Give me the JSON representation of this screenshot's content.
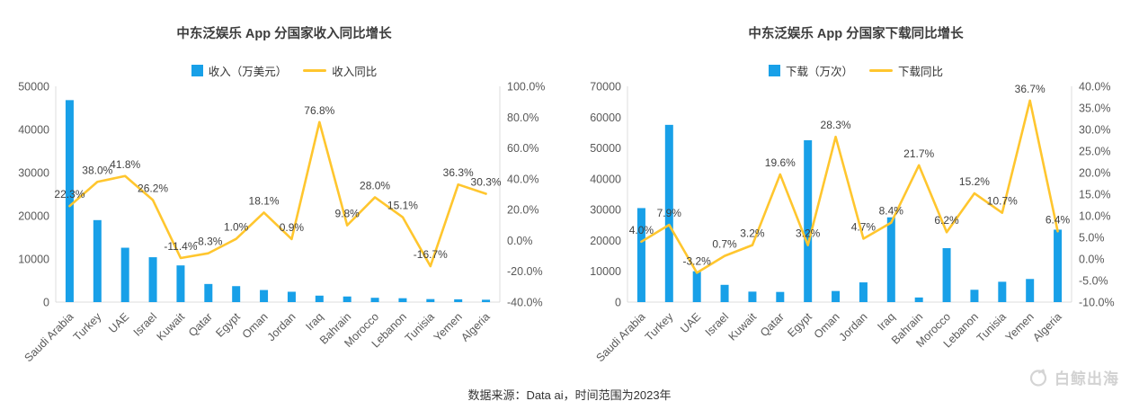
{
  "footer": {
    "source": "数据来源：Data ai，时间范围为2023年"
  },
  "watermark": {
    "text": "白鲸出海"
  },
  "chart_data": [
    {
      "type": "bar",
      "subtype": "bar+line-combo",
      "title": "中东泛娱乐 App 分国家收入同比增长",
      "categories": [
        "Saudi Arabia",
        "Turkey",
        "UAE",
        "Israel",
        "Kuwait",
        "Qatar",
        "Egypt",
        "Oman",
        "Jordan",
        "Iraq",
        "Bahrain",
        "Morocco",
        "Lebanon",
        "Tunisia",
        "Yemen",
        "Algeria"
      ],
      "series": [
        {
          "name": "收入（万美元）",
          "type": "bar",
          "axis": "left",
          "values": [
            46800,
            19000,
            12600,
            10400,
            8500,
            4200,
            3700,
            2800,
            2400,
            1500,
            1300,
            1000,
            900,
            700,
            650,
            550
          ]
        },
        {
          "name": "收入同比",
          "type": "line",
          "axis": "right",
          "unit": "%",
          "values": [
            22.3,
            38.0,
            41.8,
            26.2,
            -11.4,
            -8.3,
            1.0,
            18.1,
            0.9,
            76.8,
            9.8,
            28.0,
            15.1,
            -16.7,
            36.3,
            30.3
          ]
        }
      ],
      "left_axis": {
        "min": 0,
        "max": 50000,
        "step": 10000
      },
      "right_axis": {
        "min": -40,
        "max": 100,
        "step": 20,
        "suffix": "%"
      },
      "grid": false,
      "legend_position": "top",
      "colors": {
        "bar": "#18a0e8",
        "line": "#ffc62e"
      }
    },
    {
      "type": "bar",
      "subtype": "bar+line-combo",
      "title": "中东泛娱乐 App 分国家下载同比增长",
      "categories": [
        "Saudi Arabia",
        "Turkey",
        "UAE",
        "Israel",
        "Kuwait",
        "Qatar",
        "Egypt",
        "Oman",
        "Jordan",
        "Iraq",
        "Bahrain",
        "Morocco",
        "Lebanon",
        "Tunisia",
        "Yemen",
        "Algeria"
      ],
      "series": [
        {
          "name": "下载（万次）",
          "type": "bar",
          "axis": "left",
          "values": [
            30500,
            57500,
            10000,
            5600,
            3400,
            3300,
            52500,
            3600,
            6400,
            27500,
            1500,
            17500,
            4000,
            6600,
            7500,
            23500
          ]
        },
        {
          "name": "下载同比",
          "type": "line",
          "axis": "right",
          "unit": "%",
          "values": [
            4.0,
            7.9,
            -3.2,
            0.7,
            3.2,
            19.6,
            3.2,
            28.3,
            4.7,
            8.4,
            21.7,
            6.2,
            15.2,
            10.7,
            36.7,
            6.4
          ]
        }
      ],
      "left_axis": {
        "min": 0,
        "max": 70000,
        "step": 10000
      },
      "right_axis": {
        "min": -10,
        "max": 40,
        "step": 5,
        "suffix": "%"
      },
      "grid": false,
      "legend_position": "top",
      "colors": {
        "bar": "#18a0e8",
        "line": "#ffc62e"
      }
    }
  ]
}
